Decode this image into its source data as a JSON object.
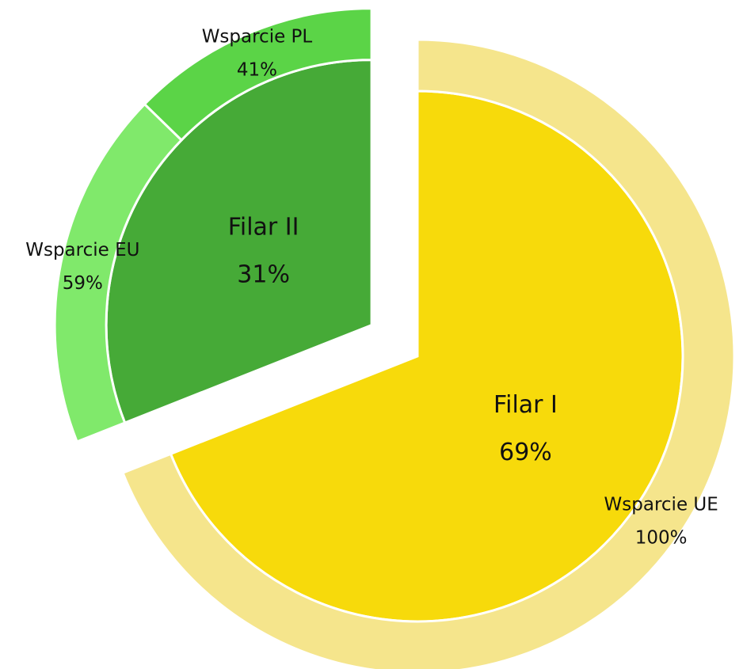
{
  "chart_data": {
    "type": "sunburst",
    "categories": [
      "Filar I",
      "Filar II"
    ],
    "values": [
      69,
      31
    ],
    "value_labels": [
      "69%",
      "31%"
    ],
    "colors": [
      "#f7da0b",
      "#46aa37"
    ],
    "explode": [
      false,
      true
    ],
    "children": [
      {
        "categories": [
          "Wsparcie UE"
        ],
        "values": [
          100
        ],
        "value_labels": [
          "100%"
        ],
        "colors": [
          "#f5e58c"
        ]
      },
      {
        "categories": [
          "Wsparcie EU",
          "Wsparcie PL"
        ],
        "values": [
          59,
          41
        ],
        "value_labels": [
          "59%",
          "41%"
        ],
        "colors": [
          "#80e96b",
          "#5bd447"
        ]
      }
    ]
  }
}
